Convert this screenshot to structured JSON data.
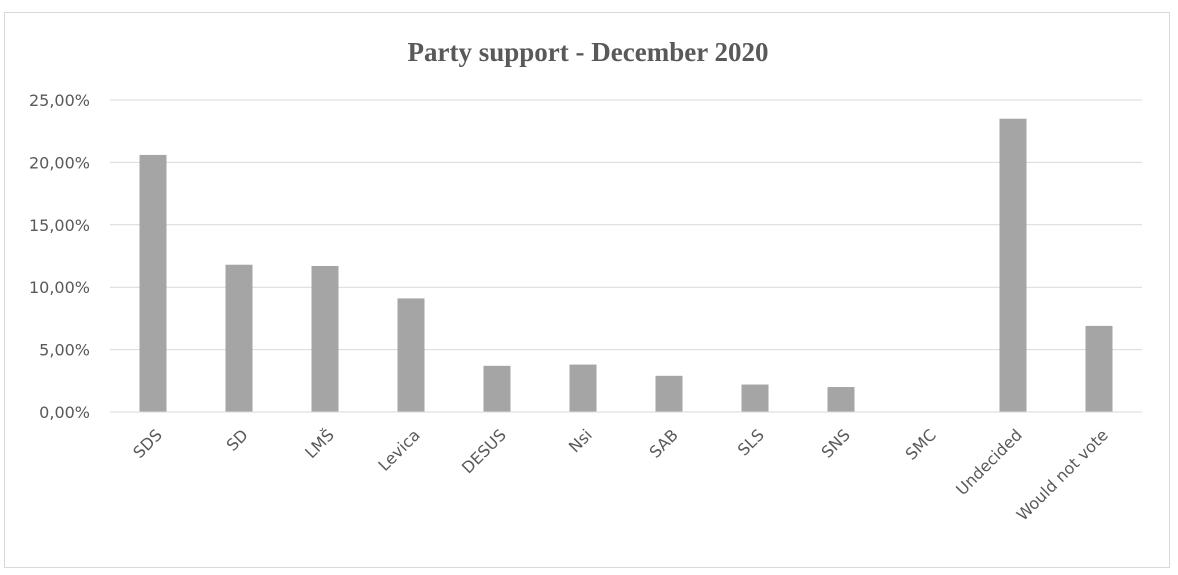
{
  "chart_data": {
    "type": "bar",
    "title": "Party support - December 2020",
    "xlabel": "",
    "ylabel": "",
    "categories": [
      "SDS",
      "SD",
      "LMŠ",
      "Levica",
      "DESUS",
      "Nsi",
      "SAB",
      "SLS",
      "SNS",
      "SMC",
      "Undecided",
      "Would not vote"
    ],
    "values": [
      20.6,
      11.8,
      11.7,
      9.1,
      3.7,
      3.8,
      2.9,
      2.2,
      2.0,
      0.0,
      23.5,
      6.9
    ],
    "yticks": [
      "0,00%",
      "5,00%",
      "10,00%",
      "15,00%",
      "20,00%",
      "25,00%"
    ],
    "ylim": [
      0,
      25
    ],
    "grid": true,
    "legend": "none",
    "bar_color": "#a5a5a5",
    "grid_color": "#d9d9d9"
  }
}
